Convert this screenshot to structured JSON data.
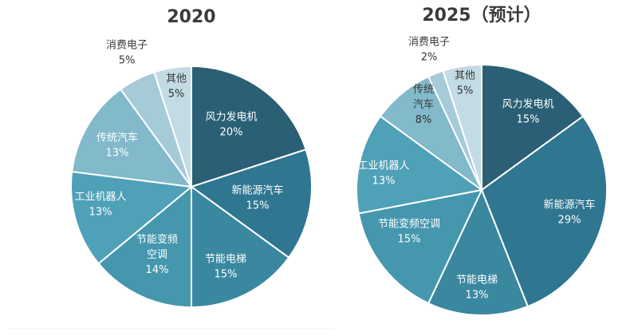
{
  "chart_data": [
    {
      "type": "pie",
      "title": "2020",
      "slices": [
        {
          "label": "风力发电机",
          "value": 20,
          "text": "20%",
          "color": "#2a5f75"
        },
        {
          "label": "新能源汽车",
          "value": 15,
          "text": "15%",
          "color": "#2f7690"
        },
        {
          "label": "节能电梯",
          "value": 15,
          "text": "15%",
          "color": "#3a87a0"
        },
        {
          "label": "节能变频空调",
          "value": 14,
          "text": "14%",
          "color": "#4597ae"
        },
        {
          "label": "工业机器人",
          "value": 13,
          "text": "13%",
          "color": "#4fa1b7"
        },
        {
          "label": "传统汽车",
          "value": 13,
          "text": "13%",
          "color": "#82b9cb"
        },
        {
          "label": "消费电子",
          "value": 5,
          "text": "5%",
          "color": "#a6cbd8"
        },
        {
          "label": "其他",
          "value": 5,
          "text": "5%",
          "color": "#c3dbe4"
        }
      ]
    },
    {
      "type": "pie",
      "title": "2025（预计）",
      "slices": [
        {
          "label": "风力发电机",
          "value": 15,
          "text": "15%",
          "color": "#2a5f75"
        },
        {
          "label": "新能源汽车",
          "value": 29,
          "text": "29%",
          "color": "#2f7690"
        },
        {
          "label": "节能电梯",
          "value": 13,
          "text": "13%",
          "color": "#3a87a0"
        },
        {
          "label": "节能变频空调",
          "value": 15,
          "text": "15%",
          "color": "#4597ae"
        },
        {
          "label": "工业机器人",
          "value": 13,
          "text": "13%",
          "color": "#4fa1b7"
        },
        {
          "label": "传统汽车",
          "value": 8,
          "text": "8%",
          "color": "#82b9cb"
        },
        {
          "label": "消费电子",
          "value": 2,
          "text": "2%",
          "color": "#a6cbd8"
        },
        {
          "label": "其他",
          "value": 5,
          "text": "5%",
          "color": "#c3dbe4"
        }
      ]
    }
  ]
}
